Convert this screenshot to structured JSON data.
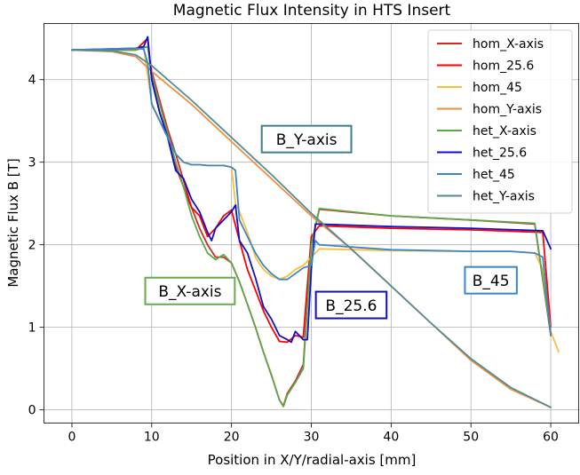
{
  "chart_data": {
    "type": "line",
    "title": "Magnetic Flux Intensity in HTS Insert",
    "xlabel": "Position in X/Y/radial-axis [mm]",
    "ylabel": "Magnetic Flux B [T]",
    "xlim": [
      -3.5,
      63.5
    ],
    "ylim": [
      -0.16,
      4.68
    ],
    "xticks": [
      0,
      10,
      20,
      30,
      40,
      50,
      60
    ],
    "yticks": [
      0,
      1,
      2,
      3,
      4
    ],
    "grid": true,
    "legend_position": "top-right",
    "series": [
      {
        "name": "hom_X-axis",
        "color": "#d62728",
        "x": [
          0,
          8,
          9.5,
          10,
          11,
          12,
          13,
          14,
          15,
          16,
          17,
          18,
          19,
          20,
          21,
          22,
          23,
          24,
          25,
          26,
          26.5,
          27,
          28,
          29,
          30,
          31,
          40,
          50,
          58,
          60
        ],
        "y": [
          4.36,
          4.36,
          4.4,
          4.1,
          3.75,
          3.4,
          3.1,
          2.78,
          2.45,
          2.2,
          2.0,
          1.85,
          1.85,
          1.78,
          1.55,
          1.28,
          1.0,
          0.7,
          0.42,
          0.12,
          0.05,
          0.2,
          0.35,
          0.55,
          2.0,
          2.43,
          2.35,
          2.3,
          2.25,
          0.9
        ]
      },
      {
        "name": "hom_25.6",
        "color": "#ff0000",
        "x": [
          0,
          8,
          9.5,
          10,
          11,
          12,
          13,
          14,
          15,
          16,
          17,
          18,
          19,
          20,
          21,
          22,
          23,
          24,
          25,
          26,
          27,
          28,
          29,
          29.5,
          30,
          31,
          40,
          50,
          59,
          60
        ],
        "y": [
          4.36,
          4.36,
          4.5,
          4.0,
          3.6,
          3.3,
          2.95,
          2.7,
          2.45,
          2.35,
          2.1,
          2.2,
          2.35,
          2.42,
          2.05,
          1.7,
          1.45,
          1.2,
          1.0,
          0.83,
          0.82,
          0.9,
          0.88,
          1.5,
          2.1,
          2.23,
          2.2,
          2.18,
          2.15,
          1.0
        ]
      },
      {
        "name": "hom_45",
        "color": "#f7c13d",
        "x": [
          0,
          8,
          9,
          10,
          11,
          12,
          13,
          14,
          15,
          16,
          17,
          18,
          19,
          20,
          20.5,
          21,
          22,
          23,
          24,
          25,
          26,
          27,
          28,
          29,
          30,
          31,
          40,
          50,
          55,
          58,
          59,
          60,
          61
        ],
        "y": [
          4.36,
          4.36,
          4.38,
          3.72,
          3.5,
          3.3,
          3.1,
          3.0,
          2.97,
          2.97,
          2.96,
          2.96,
          2.96,
          2.94,
          2.5,
          2.4,
          2.15,
          1.85,
          1.7,
          1.62,
          1.58,
          1.62,
          1.7,
          1.75,
          1.85,
          1.95,
          1.93,
          1.92,
          1.92,
          1.9,
          1.7,
          0.95,
          0.7
        ]
      },
      {
        "name": "hom_Y-axis",
        "color": "#ed8f3d",
        "x": [
          0,
          5,
          8,
          10,
          15,
          20,
          25,
          30,
          35,
          40,
          45,
          50,
          55,
          60
        ],
        "y": [
          4.36,
          4.34,
          4.28,
          4.1,
          3.7,
          3.25,
          2.8,
          2.35,
          1.95,
          1.5,
          1.05,
          0.6,
          0.25,
          0.03
        ]
      },
      {
        "name": "het_X-axis",
        "color": "#5ba84a",
        "x": [
          0,
          8,
          9.5,
          10,
          11,
          12,
          13,
          14,
          15,
          16,
          17,
          18,
          19,
          20,
          21,
          22,
          23,
          24,
          25,
          26,
          26.5,
          27,
          28,
          29,
          30,
          31,
          40,
          50,
          58,
          60
        ],
        "y": [
          4.36,
          4.36,
          4.4,
          4.05,
          3.7,
          3.35,
          3.0,
          2.7,
          2.35,
          2.1,
          1.9,
          1.82,
          1.88,
          1.78,
          1.55,
          1.28,
          1.0,
          0.7,
          0.42,
          0.12,
          0.04,
          0.18,
          0.33,
          0.5,
          2.0,
          2.44,
          2.35,
          2.3,
          2.26,
          0.92
        ]
      },
      {
        "name": "het_25.6",
        "color": "#1010c8",
        "x": [
          0,
          8,
          9,
          9.5,
          10,
          11,
          12,
          13,
          14,
          15,
          16,
          17,
          17.5,
          18,
          19,
          20,
          20.5,
          21,
          22,
          23,
          24,
          25,
          26,
          27,
          27.5,
          28,
          29,
          29.5,
          30,
          30.5,
          31,
          40,
          50,
          59,
          60
        ],
        "y": [
          4.36,
          4.38,
          4.4,
          4.52,
          4.0,
          3.6,
          3.3,
          2.9,
          2.8,
          2.55,
          2.4,
          2.15,
          2.05,
          2.2,
          2.3,
          2.4,
          2.48,
          2.05,
          1.9,
          1.6,
          1.25,
          1.1,
          0.9,
          0.85,
          0.82,
          0.95,
          0.85,
          0.85,
          1.7,
          2.25,
          2.25,
          2.22,
          2.2,
          2.17,
          1.95
        ]
      },
      {
        "name": "het_45",
        "color": "#3d85c6",
        "x": [
          0,
          8,
          9,
          9.5,
          10,
          11,
          12,
          13,
          14,
          15,
          16,
          17,
          18,
          19,
          20,
          20.5,
          21,
          22,
          23,
          24,
          25,
          26,
          27,
          28,
          29,
          30,
          30.5,
          31,
          40,
          50,
          55,
          58,
          59,
          60
        ],
        "y": [
          4.36,
          4.38,
          4.37,
          4.2,
          3.7,
          3.5,
          3.3,
          3.1,
          3.0,
          2.97,
          2.97,
          2.96,
          2.96,
          2.96,
          2.94,
          2.9,
          2.3,
          2.1,
          1.9,
          1.75,
          1.65,
          1.58,
          1.58,
          1.65,
          1.72,
          1.75,
          2.05,
          2.0,
          1.94,
          1.92,
          1.92,
          1.9,
          1.85,
          0.9
        ]
      },
      {
        "name": "het_Y-axis",
        "color": "#528c96",
        "x": [
          0,
          5,
          8,
          10,
          15,
          20,
          25,
          30,
          35,
          40,
          45,
          50,
          55,
          60
        ],
        "y": [
          4.36,
          4.35,
          4.3,
          4.17,
          3.75,
          3.3,
          2.85,
          2.38,
          1.95,
          1.5,
          1.05,
          0.62,
          0.27,
          0.03
        ]
      }
    ],
    "annotations": [
      {
        "text": "B_Y-axis",
        "x": 29.4,
        "y": 3.28,
        "color": "#3f7f8c"
      },
      {
        "text": "B_X-axis",
        "x": 14.8,
        "y": 1.44,
        "color": "#6aa84f"
      },
      {
        "text": "B_25.6",
        "x": 35.0,
        "y": 1.27,
        "color": "#1010aa"
      },
      {
        "text": "B_45",
        "x": 52.5,
        "y": 1.57,
        "color": "#3d85c6"
      }
    ]
  }
}
